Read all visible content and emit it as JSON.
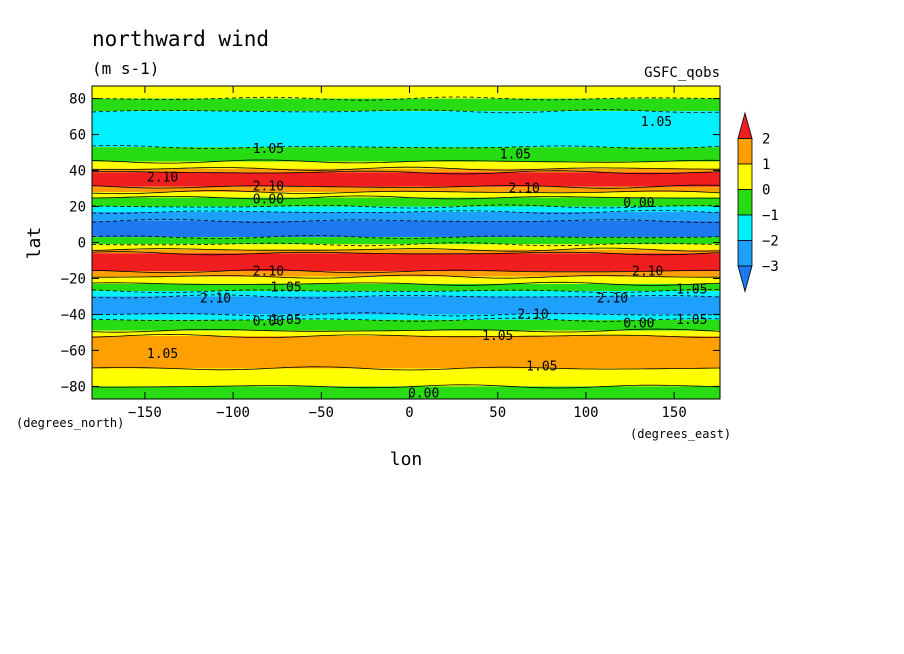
{
  "chart_data": {
    "type": "heatmap",
    "title": "northward wind",
    "units": "(m s-1)",
    "source_label": "GSFC_qobs",
    "xlabel": "lon",
    "ylabel": "lat",
    "x_units": "(degrees_east)",
    "y_units": "(degrees_north)",
    "xlim": [
      -180,
      176
    ],
    "ylim": [
      -87,
      87
    ],
    "xticks": [
      -150,
      -100,
      -50,
      0,
      50,
      100,
      150
    ],
    "yticks": [
      -80,
      -60,
      -40,
      -20,
      0,
      20,
      40,
      60,
      80
    ],
    "colorbar": {
      "levels": [
        -3,
        -2,
        -1,
        0,
        1,
        2
      ],
      "labels": [
        "2",
        "1",
        "0",
        "−1",
        "−2",
        "−3"
      ],
      "colors": {
        "below_-3": "#1e78f0",
        "-3_to_-2": "#1ea0ff",
        "-2_to_-1": "#00f0ff",
        "-1_to_0": "#28dc14",
        "0_to_1": "#ffff00",
        "1_to_2": "#ffa000",
        "above_2": "#f01e1e"
      }
    },
    "bands": [
      {
        "lat_max": 87,
        "lat_min": 80,
        "value": 0.4
      },
      {
        "lat_max": 80,
        "lat_min": 73,
        "value": -0.5
      },
      {
        "lat_max": 73,
        "lat_min": 53,
        "value": -1.4
      },
      {
        "lat_max": 53,
        "lat_min": 45,
        "value": -0.5
      },
      {
        "lat_max": 45,
        "lat_min": 41,
        "value": 0.5
      },
      {
        "lat_max": 41,
        "lat_min": 39,
        "value": 1.5
      },
      {
        "lat_max": 39,
        "lat_min": 31,
        "value": 2.4
      },
      {
        "lat_max": 31,
        "lat_min": 28,
        "value": 1.5
      },
      {
        "lat_max": 28,
        "lat_min": 25,
        "value": 0.5
      },
      {
        "lat_max": 25,
        "lat_min": 20,
        "value": -0.5
      },
      {
        "lat_max": 20,
        "lat_min": 17,
        "value": -1.5
      },
      {
        "lat_max": 17,
        "lat_min": 12,
        "value": -2.5
      },
      {
        "lat_max": 12,
        "lat_min": 3,
        "value": -3.4
      },
      {
        "lat_max": 3,
        "lat_min": -1,
        "value": -1.0
      },
      {
        "lat_max": -1,
        "lat_min": -4,
        "value": 0.5
      },
      {
        "lat_max": -4,
        "lat_min": -6,
        "value": 1.5
      },
      {
        "lat_max": -6,
        "lat_min": -16,
        "value": 2.8
      },
      {
        "lat_max": -16,
        "lat_min": -19,
        "value": 1.5
      },
      {
        "lat_max": -19,
        "lat_min": -23,
        "value": 0.5
      },
      {
        "lat_max": -23,
        "lat_min": -27,
        "value": -0.5
      },
      {
        "lat_max": -27,
        "lat_min": -30,
        "value": -1.5
      },
      {
        "lat_max": -30,
        "lat_min": -40,
        "value": -2.5
      },
      {
        "lat_max": -40,
        "lat_min": -43,
        "value": -1.5
      },
      {
        "lat_max": -43,
        "lat_min": -49,
        "value": -0.5
      },
      {
        "lat_max": -49,
        "lat_min": -52,
        "value": 0.5
      },
      {
        "lat_max": -52,
        "lat_min": -70,
        "value": 1.5
      },
      {
        "lat_max": -70,
        "lat_min": -80,
        "value": 0.5
      },
      {
        "lat_max": -80,
        "lat_min": -87,
        "value": -0.3
      }
    ],
    "contour_labels": [
      {
        "text": "1.05",
        "lon": -80,
        "lat": 52
      },
      {
        "text": "1.05",
        "lon": 140,
        "lat": 67
      },
      {
        "text": "1.05",
        "lon": 60,
        "lat": 49
      },
      {
        "text": "2.10",
        "lon": -140,
        "lat": 36
      },
      {
        "text": "2.10",
        "lon": 65,
        "lat": 30
      },
      {
        "text": "2.10",
        "lon": -80,
        "lat": 31
      },
      {
        "text": "0.00",
        "lon": -80,
        "lat": 24
      },
      {
        "text": "0.00",
        "lon": 130,
        "lat": 22
      },
      {
        "text": "2.10",
        "lon": -80,
        "lat": -16
      },
      {
        "text": "2.10",
        "lon": 135,
        "lat": -16
      },
      {
        "text": "1.05",
        "lon": -70,
        "lat": -25
      },
      {
        "text": "1.05",
        "lon": 160,
        "lat": -26
      },
      {
        "text": "2.10",
        "lon": -110,
        "lat": -31
      },
      {
        "text": "2.10",
        "lon": 115,
        "lat": -31
      },
      {
        "text": "2.10",
        "lon": 70,
        "lat": -40
      },
      {
        "text": "0.00",
        "lon": -80,
        "lat": -44
      },
      {
        "text": "0.00",
        "lon": 130,
        "lat": -45
      },
      {
        "text": "1.05",
        "lon": -70,
        "lat": -43
      },
      {
        "text": "1.05",
        "lon": 160,
        "lat": -43
      },
      {
        "text": "1.05",
        "lon": 50,
        "lat": -52
      },
      {
        "text": "1.05",
        "lon": -140,
        "lat": -62
      },
      {
        "text": "1.05",
        "lon": 75,
        "lat": -69
      },
      {
        "text": "0.00",
        "lon": 8,
        "lat": -84
      }
    ]
  }
}
